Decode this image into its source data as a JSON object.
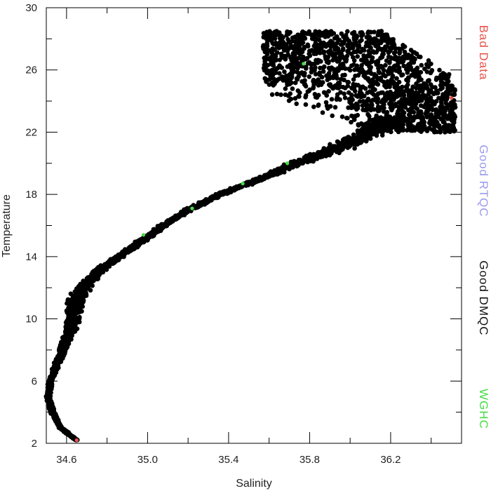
{
  "chart_data": {
    "type": "scatter",
    "title": "",
    "xlabel": "Salinity",
    "ylabel": "Temperature",
    "xlim": [
      34.5,
      36.55
    ],
    "ylim": [
      2,
      30
    ],
    "x_ticks": [
      34.6,
      35.0,
      35.4,
      35.8,
      36.2
    ],
    "x_tick_labels": [
      "34.6",
      "35.0",
      "35.4",
      "35.8",
      "36.2"
    ],
    "x_minor_ticks": [
      34.8,
      35.2,
      35.6,
      36.0,
      36.4
    ],
    "y_ticks": [
      2,
      6,
      10,
      14,
      18,
      22,
      26,
      30
    ],
    "y_tick_labels": [
      "2",
      "6",
      "10",
      "14",
      "18",
      "22",
      "26",
      "30"
    ],
    "y_minor_ticks": [
      4,
      8,
      12,
      16,
      20,
      24,
      28
    ],
    "grid": false,
    "legend_placement": "right-outside-vertical",
    "legend": [
      {
        "label": "Bad Data",
        "color": "#e8534a"
      },
      {
        "label": "Good RTQC",
        "color": "#9a9af0"
      },
      {
        "label": "Good DMQC",
        "color": "#111111"
      },
      {
        "label": "WGHC",
        "color": "#44dd44"
      }
    ],
    "series": [
      {
        "name": "Good DMQC",
        "color": "#000000",
        "profile_envelope": [
          {
            "t": 2.2,
            "s": 34.65,
            "spread": 0.01
          },
          {
            "t": 3.0,
            "s": 34.57,
            "spread": 0.015
          },
          {
            "t": 4.0,
            "s": 34.53,
            "spread": 0.015
          },
          {
            "t": 5.0,
            "s": 34.51,
            "spread": 0.015
          },
          {
            "t": 6.0,
            "s": 34.52,
            "spread": 0.015
          },
          {
            "t": 7.0,
            "s": 34.55,
            "spread": 0.02
          },
          {
            "t": 8.0,
            "s": 34.58,
            "spread": 0.025
          },
          {
            "t": 9.0,
            "s": 34.61,
            "spread": 0.035
          },
          {
            "t": 10.0,
            "s": 34.63,
            "spread": 0.05
          },
          {
            "t": 11.0,
            "s": 34.64,
            "spread": 0.06
          },
          {
            "t": 12.0,
            "s": 34.68,
            "spread": 0.05
          },
          {
            "t": 13.0,
            "s": 34.75,
            "spread": 0.035
          },
          {
            "t": 14.0,
            "s": 34.86,
            "spread": 0.03
          },
          {
            "t": 15.0,
            "s": 34.97,
            "spread": 0.03
          },
          {
            "t": 16.0,
            "s": 35.08,
            "spread": 0.03
          },
          {
            "t": 17.0,
            "s": 35.2,
            "spread": 0.03
          },
          {
            "t": 18.0,
            "s": 35.36,
            "spread": 0.035
          },
          {
            "t": 19.0,
            "s": 35.56,
            "spread": 0.04
          },
          {
            "t": 20.0,
            "s": 35.74,
            "spread": 0.06
          },
          {
            "t": 21.0,
            "s": 35.95,
            "spread": 0.1
          },
          {
            "t": 22.0,
            "s": 36.1,
            "spread": 0.14
          },
          {
            "t": 23.0,
            "s": 36.22,
            "spread": 0.18
          }
        ],
        "upper_cloud": {
          "t_range": [
            22,
            28.5
          ],
          "s_range": [
            35.57,
            36.52
          ]
        }
      },
      {
        "name": "WGHC",
        "color": "#44dd44",
        "points": [
          {
            "x": 34.98,
            "y": 15.4
          },
          {
            "x": 35.22,
            "y": 17.1
          },
          {
            "x": 35.47,
            "y": 18.7
          },
          {
            "x": 35.69,
            "y": 20.0
          },
          {
            "x": 35.77,
            "y": 26.4
          }
        ]
      },
      {
        "name": "Bad Data",
        "color": "#e8534a",
        "points": [
          {
            "x": 34.65,
            "y": 2.2
          },
          {
            "x": 36.5,
            "y": 24.2
          }
        ]
      }
    ]
  }
}
